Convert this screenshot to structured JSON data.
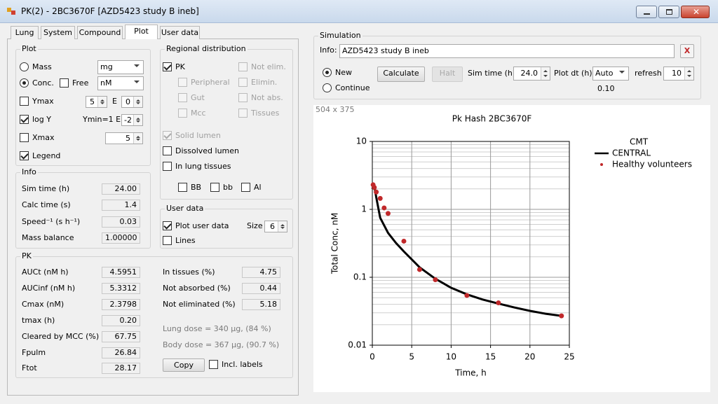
{
  "window": {
    "title": "PK(2) - 2BC3670F [AZD5423 study B ineb]"
  },
  "tabs": {
    "items": [
      "Lung",
      "System",
      "Compound",
      "Plot",
      "User data"
    ],
    "active": 3
  },
  "plot_group": {
    "title": "Plot",
    "mass": {
      "label": "Mass",
      "checked": false
    },
    "mass_unit": "mg",
    "conc": {
      "label": "Conc.",
      "checked": true
    },
    "free": {
      "label": "Free",
      "checked": false
    },
    "conc_unit": "nM",
    "ymax": {
      "label": "Ymax",
      "checked": false
    },
    "ymax_mantissa": "5",
    "e_label": "E",
    "ymax_exponent": "0",
    "log_y": {
      "label": "log Y",
      "checked": true
    },
    "ymin_label": "Ymin=1 E",
    "ymin_exponent": "-2",
    "xmax": {
      "label": "Xmax",
      "checked": false
    },
    "xmax_value": "5",
    "legend": {
      "label": "Legend",
      "checked": true
    }
  },
  "regional": {
    "title": "Regional distribution",
    "pk": {
      "label": "PK",
      "checked": true
    },
    "peripheral": {
      "label": "Peripheral",
      "checked": false,
      "disabled": true
    },
    "gut": {
      "label": "Gut",
      "checked": false,
      "disabled": true
    },
    "mcc": {
      "label": "Mcc",
      "checked": false,
      "disabled": true
    },
    "not_elim": {
      "label": "Not elim.",
      "checked": false,
      "disabled": true
    },
    "elimin": {
      "label": "Elimin.",
      "checked": false,
      "disabled": true
    },
    "not_abs": {
      "label": "Not abs.",
      "checked": false,
      "disabled": true
    },
    "tissues": {
      "label": "Tissues",
      "checked": false,
      "disabled": true
    },
    "solid_lumen": {
      "label": "Solid lumen",
      "checked": true,
      "disabled": true
    },
    "dissolved_lumen": {
      "label": "Dissolved lumen",
      "checked": false
    },
    "in_lung_tissues": {
      "label": "In lung tissues",
      "checked": false
    },
    "bb_upper": {
      "label": "BB",
      "checked": false
    },
    "bb_lower": {
      "label": "bb",
      "checked": false
    },
    "al": {
      "label": "Al",
      "checked": false
    }
  },
  "user_data": {
    "title": "User data",
    "plot_user_data": {
      "label": "Plot user data",
      "checked": true
    },
    "size_label": "Size",
    "size": "6",
    "lines": {
      "label": "Lines",
      "checked": false
    }
  },
  "info": {
    "title": "Info",
    "rows": [
      [
        "Sim time (h)",
        "24.00"
      ],
      [
        "Calc time (s)",
        "1.4"
      ],
      [
        "Speed⁻¹ (s h⁻¹)",
        "0.03"
      ],
      [
        "Mass balance",
        "1.00000"
      ]
    ]
  },
  "pk": {
    "title": "PK",
    "rows": [
      [
        "AUCt (nM h)",
        "4.5951"
      ],
      [
        "AUCinf (nM h)",
        "5.3312"
      ],
      [
        "Cmax (nM)",
        "2.3798"
      ],
      [
        "tmax (h)",
        "0.20"
      ],
      [
        "Cleared by MCC (%)",
        "67.75"
      ],
      [
        "Fpulm",
        "26.84"
      ],
      [
        "Ftot",
        "28.17"
      ]
    ],
    "right_rows": [
      [
        "In tissues (%)",
        "4.75"
      ],
      [
        "Not absorbed (%)",
        "0.44"
      ],
      [
        "Not eliminated (%)",
        "5.18"
      ]
    ],
    "lung_dose": "Lung dose = 340 µg, (84 %)",
    "body_dose": "Body dose = 367 µg, (90.7 %)",
    "copy_button": "Copy",
    "incl_labels": {
      "label": "Incl. labels",
      "checked": false
    }
  },
  "simulation": {
    "title": "Simulation",
    "info_label": "Info:",
    "info_value": "AZD5423 study B ineb",
    "clear_button": "X",
    "new": {
      "label": "New",
      "checked": true
    },
    "continue": {
      "label": "Continue",
      "checked": false
    },
    "calculate_button": "Calculate",
    "halt_button": "Halt",
    "sim_time_label": "Sim time (h)",
    "sim_time": "24.0",
    "plot_dt_label": "Plot dt (h)",
    "plot_dt": "Auto",
    "plot_dt_value": "0.10",
    "refresh_label": "refresh",
    "refresh": "10",
    "plot_size": "504 x 375"
  },
  "chart_data": {
    "type": "line",
    "title": "Pk Hash 2BC3670F",
    "x_label": "Time, h",
    "y_label": "Total Conc, nM",
    "legend_title": "CMT",
    "log_y": true,
    "grid": true,
    "xlim": [
      0,
      25
    ],
    "xticks": [
      0,
      5,
      10,
      15,
      20,
      25
    ],
    "ylim": [
      0.01,
      10
    ],
    "yticks": [
      0.01,
      0.1,
      1,
      10
    ],
    "series": [
      {
        "name": "CENTRAL",
        "color": "#000000",
        "style": "line",
        "x": [
          0,
          0.2,
          0.5,
          1,
          2,
          3,
          4,
          6,
          8,
          10,
          12,
          14,
          16,
          18,
          20,
          22,
          24
        ],
        "values": [
          2.0,
          2.38,
          1.5,
          0.75,
          0.45,
          0.32,
          0.24,
          0.14,
          0.095,
          0.07,
          0.056,
          0.047,
          0.041,
          0.036,
          0.032,
          0.029,
          0.027
        ]
      },
      {
        "name": "Healthy volunteers",
        "color": "#c0282a",
        "style": "markers",
        "x": [
          0.1,
          0.25,
          0.5,
          1,
          1.5,
          2,
          4,
          6,
          8,
          12,
          16,
          24
        ],
        "values": [
          2.3,
          2.1,
          1.8,
          1.45,
          1.05,
          0.87,
          0.34,
          0.13,
          0.092,
          0.054,
          0.042,
          0.027
        ]
      }
    ]
  }
}
